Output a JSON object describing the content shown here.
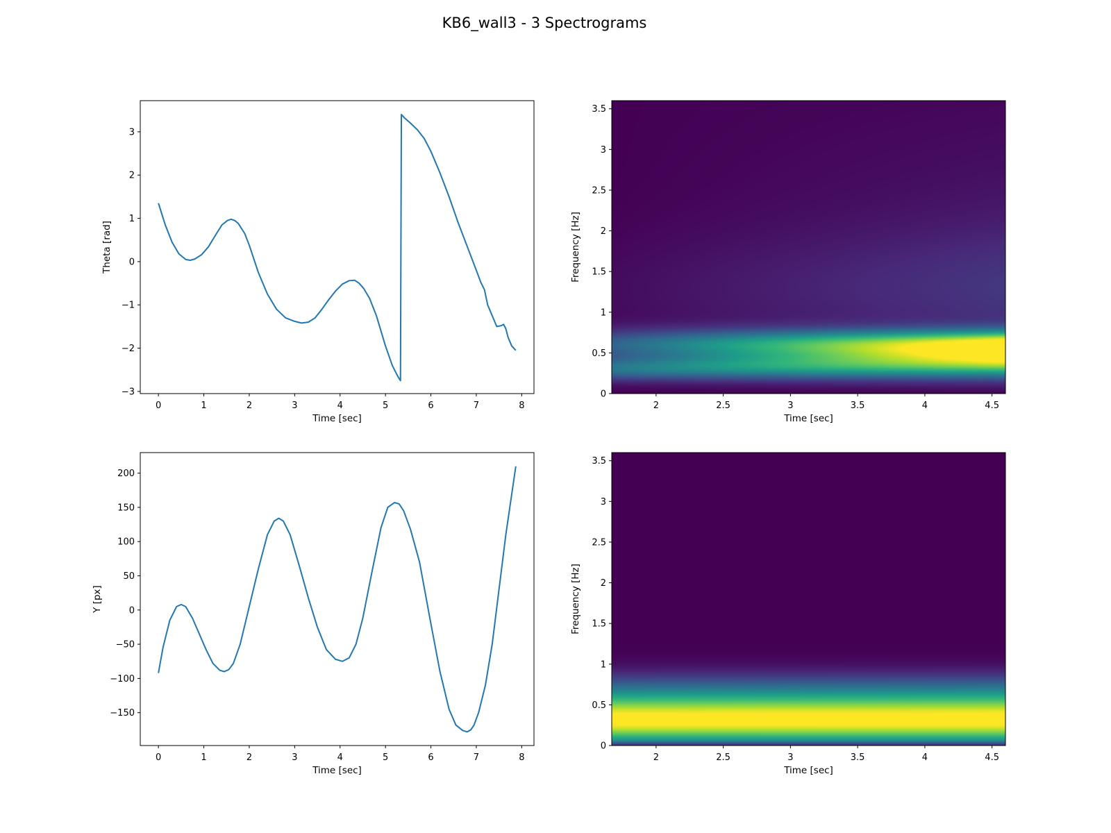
{
  "figure": {
    "suptitle": "KB6_wall3 - 3 Spectrograms"
  },
  "chart_data": [
    {
      "type": "line",
      "xlabel": "Time [sec]",
      "ylabel": "Theta [rad]",
      "xlim": [
        -0.4,
        8.27
      ],
      "ylim": [
        -3.05,
        3.72
      ],
      "xticks": [
        0,
        1,
        2,
        3,
        4,
        5,
        6,
        7,
        8
      ],
      "yticks": [
        -3,
        -2,
        -1,
        0,
        1,
        2,
        3
      ],
      "grid": false,
      "color": "#1f77b4",
      "x": [
        0,
        0.15,
        0.3,
        0.45,
        0.6,
        0.7,
        0.8,
        0.95,
        1.1,
        1.25,
        1.4,
        1.52,
        1.6,
        1.68,
        1.76,
        1.9,
        2.0,
        2.2,
        2.4,
        2.6,
        2.8,
        3.0,
        3.15,
        3.3,
        3.45,
        3.6,
        3.75,
        3.9,
        4.05,
        4.2,
        4.32,
        4.42,
        4.52,
        4.65,
        4.8,
        5.0,
        5.15,
        5.27,
        5.33,
        5.35,
        5.42,
        5.55,
        5.7,
        5.85,
        6.0,
        6.2,
        6.4,
        6.6,
        6.8,
        7.0,
        7.1,
        7.18,
        7.25,
        7.35,
        7.45,
        7.55,
        7.6,
        7.65,
        7.7,
        7.78,
        7.87
      ],
      "y": [
        1.35,
        0.85,
        0.45,
        0.18,
        0.05,
        0.03,
        0.06,
        0.16,
        0.34,
        0.6,
        0.85,
        0.95,
        0.98,
        0.95,
        0.88,
        0.65,
        0.38,
        -0.25,
        -0.75,
        -1.1,
        -1.3,
        -1.38,
        -1.42,
        -1.4,
        -1.3,
        -1.1,
        -0.88,
        -0.68,
        -0.52,
        -0.44,
        -0.43,
        -0.5,
        -0.62,
        -0.85,
        -1.25,
        -1.95,
        -2.4,
        -2.65,
        -2.75,
        3.4,
        3.32,
        3.2,
        3.05,
        2.85,
        2.55,
        2.05,
        1.5,
        0.9,
        0.35,
        -0.2,
        -0.48,
        -0.65,
        -1.0,
        -1.25,
        -1.5,
        -1.48,
        -1.45,
        -1.55,
        -1.75,
        -1.95,
        -2.05
      ]
    },
    {
      "type": "heatmap",
      "xlabel": "Time [sec]",
      "ylabel": "Frequency [Hz]",
      "xlim": [
        1.67,
        4.6
      ],
      "ylim": [
        0.0,
        3.6
      ],
      "xticks": [
        2.0,
        2.5,
        3.0,
        3.5,
        4.0,
        4.5
      ],
      "yticks": [
        0.0,
        0.5,
        1.0,
        1.5,
        2.0,
        2.5,
        3.0,
        3.5
      ],
      "colormap": "viridis",
      "bands": [
        {
          "f0": 0.6,
          "f1": 0.6,
          "sigma0": 0.13,
          "sigma1": 0.12,
          "amp0": 0.3,
          "amp1": 1.0
        },
        {
          "f0": 0.3,
          "f1": 0.38,
          "sigma0": 0.1,
          "sigma1": 0.13,
          "amp0": 0.38,
          "amp1": 0.75
        },
        {
          "f0": 1.25,
          "f1": 1.25,
          "sigma0": 0.5,
          "sigma1": 0.55,
          "amp0": 0.03,
          "amp1": 0.12
        },
        {
          "f0": 2.0,
          "f1": 2.0,
          "sigma0": 1.1,
          "sigma1": 1.1,
          "amp0": 0.0,
          "amp1": 0.05
        }
      ]
    },
    {
      "type": "line",
      "xlabel": "Time [sec]",
      "ylabel": "Y [px]",
      "xlim": [
        -0.4,
        8.27
      ],
      "ylim": [
        -198,
        230
      ],
      "xticks": [
        0,
        1,
        2,
        3,
        4,
        5,
        6,
        7,
        8
      ],
      "yticks": [
        -150,
        -100,
        -50,
        0,
        50,
        100,
        150,
        200
      ],
      "grid": false,
      "color": "#1f77b4",
      "x": [
        0,
        0.1,
        0.25,
        0.4,
        0.5,
        0.6,
        0.75,
        0.9,
        1.05,
        1.2,
        1.35,
        1.45,
        1.55,
        1.65,
        1.8,
        2.0,
        2.2,
        2.4,
        2.55,
        2.65,
        2.75,
        2.9,
        3.1,
        3.3,
        3.5,
        3.7,
        3.9,
        4.05,
        4.2,
        4.35,
        4.5,
        4.7,
        4.9,
        5.05,
        5.2,
        5.3,
        5.4,
        5.55,
        5.75,
        6.0,
        6.2,
        6.4,
        6.55,
        6.7,
        6.8,
        6.88,
        6.95,
        7.05,
        7.2,
        7.35,
        7.5,
        7.65,
        7.87
      ],
      "y": [
        -92,
        -55,
        -15,
        5,
        8,
        5,
        -12,
        -35,
        -58,
        -78,
        -88,
        -90,
        -87,
        -78,
        -50,
        5,
        60,
        110,
        130,
        134,
        130,
        110,
        65,
        18,
        -25,
        -58,
        -72,
        -75,
        -70,
        -50,
        -12,
        55,
        120,
        150,
        157,
        155,
        145,
        118,
        70,
        -20,
        -90,
        -145,
        -168,
        -176,
        -178,
        -175,
        -168,
        -150,
        -110,
        -50,
        30,
        110,
        210
      ]
    },
    {
      "type": "heatmap",
      "xlabel": "Time [sec]",
      "ylabel": "Frequency [Hz]",
      "xlim": [
        1.67,
        4.6
      ],
      "ylim": [
        0.0,
        3.6
      ],
      "xticks": [
        2.0,
        2.5,
        3.0,
        3.5,
        4.0,
        4.5
      ],
      "yticks": [
        0.0,
        0.5,
        1.0,
        1.5,
        2.0,
        2.5,
        3.0,
        3.5
      ],
      "colormap": "viridis",
      "bands": [
        {
          "f0": 0.3,
          "f1": 0.3,
          "sigma0": 0.2,
          "sigma1": 0.2,
          "amp0": 1.0,
          "amp1": 1.0
        },
        {
          "f0": 0.65,
          "f1": 0.65,
          "sigma0": 0.18,
          "sigma1": 0.18,
          "amp0": 0.28,
          "amp1": 0.3
        }
      ]
    }
  ]
}
